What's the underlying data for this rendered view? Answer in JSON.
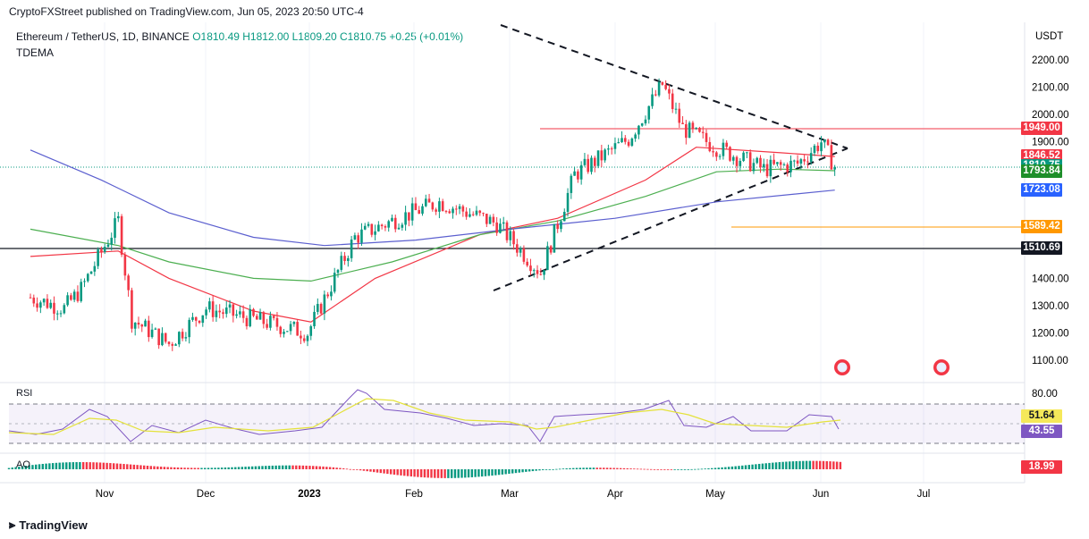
{
  "credit": "CryptoFXStreet published on TradingView.com, Jun 05, 2023 20:50 UTC-4",
  "legend": {
    "symbol": "Ethereum / TetherUS, 1D, BINANCE",
    "ohlc": "O1810.49  H1812.00  L1809.20  C1810.75  +0.25 (+0.01%)",
    "indicator": "TDEMA"
  },
  "price_axis": {
    "currency": "USDT",
    "ticks": [
      "2200.00",
      "2100.00",
      "2000.00",
      "1900.00",
      "1400.00",
      "1300.00",
      "1200.00",
      "1100.00"
    ]
  },
  "price_badges": [
    {
      "label": "1949.00",
      "color": "#f23645"
    },
    {
      "label": "1846.52",
      "color": "#f23645"
    },
    {
      "label": "1810.75",
      "color": "#089981"
    },
    {
      "label": "1793.84",
      "color": "#1e8e2a"
    },
    {
      "label": "1723.08",
      "color": "#2962ff"
    },
    {
      "label": "1589.42",
      "color": "#ff9800"
    },
    {
      "label": "1510.69",
      "color": "#131722"
    }
  ],
  "rsi": {
    "label": "RSI",
    "tick": "80.00",
    "badges": [
      {
        "label": "51.64",
        "color": "#f5e85a"
      },
      {
        "label": "43.55",
        "color": "#7e57c2"
      }
    ]
  },
  "ao": {
    "label": "AO",
    "badge": {
      "label": "18.99",
      "color": "#f23645"
    }
  },
  "time_axis": [
    "Nov",
    "Dec",
    "2023",
    "Feb",
    "Mar",
    "Apr",
    "May",
    "Jun",
    "Jul"
  ],
  "footer": "TradingView",
  "chart_data": {
    "type": "line",
    "title": "Ethereum / TetherUS, 1D, BINANCE",
    "ylabel": "USDT",
    "ylim": [
      1050,
      2250
    ],
    "horizontal_levels": [
      1949.0,
      1589.42,
      1510.69
    ],
    "series": [
      {
        "name": "price",
        "color": "#131722",
        "x": [
          "Oct 10",
          "Oct 20",
          "Oct 25",
          "Nov 5",
          "Nov 9",
          "Nov 20",
          "Dec 1",
          "Dec 15",
          "Dec 31",
          "Jan 14",
          "Jan 25",
          "Feb 8",
          "Feb 25",
          "Mar 10",
          "Mar 20",
          "Apr 5",
          "Apr 15",
          "Apr 21",
          "May 1",
          "May 15",
          "May 25",
          "Jun 1",
          "Jun 5"
        ],
        "values": [
          1330,
          1290,
          1360,
          1610,
          1250,
          1160,
          1290,
          1250,
          1200,
          1550,
          1610,
          1680,
          1600,
          1420,
          1780,
          1910,
          2110,
          1950,
          1880,
          1800,
          1820,
          1900,
          1810
        ]
      },
      {
        "name": "TDEMA red",
        "color": "#f23645",
        "x": [
          "Oct 10",
          "Nov 5",
          "Nov 20",
          "Dec 15",
          "Jan 1",
          "Jan 20",
          "Feb 20",
          "Mar 15",
          "Apr 10",
          "Apr 25",
          "May 20",
          "Jun 5"
        ],
        "values": [
          1480,
          1500,
          1400,
          1280,
          1240,
          1400,
          1560,
          1620,
          1760,
          1880,
          1860,
          1846
        ]
      },
      {
        "name": "TDEMA green",
        "color": "#4caf50",
        "x": [
          "Oct 10",
          "Nov 5",
          "Nov 20",
          "Dec 15",
          "Jan 1",
          "Jan 25",
          "Feb 20",
          "Mar 15",
          "Apr 10",
          "May 1",
          "May 20",
          "Jun 5"
        ],
        "values": [
          1580,
          1520,
          1460,
          1400,
          1390,
          1460,
          1560,
          1610,
          1700,
          1790,
          1800,
          1794
        ]
      },
      {
        "name": "TDEMA blue",
        "color": "#5b5fcf",
        "x": [
          "Oct 10",
          "Oct 31",
          "Nov 20",
          "Dec 15",
          "Jan 5",
          "Feb 1",
          "Mar 1",
          "Apr 1",
          "May 1",
          "Jun 5"
        ],
        "values": [
          1870,
          1760,
          1640,
          1550,
          1520,
          1540,
          1580,
          1620,
          1680,
          1723
        ]
      }
    ]
  }
}
